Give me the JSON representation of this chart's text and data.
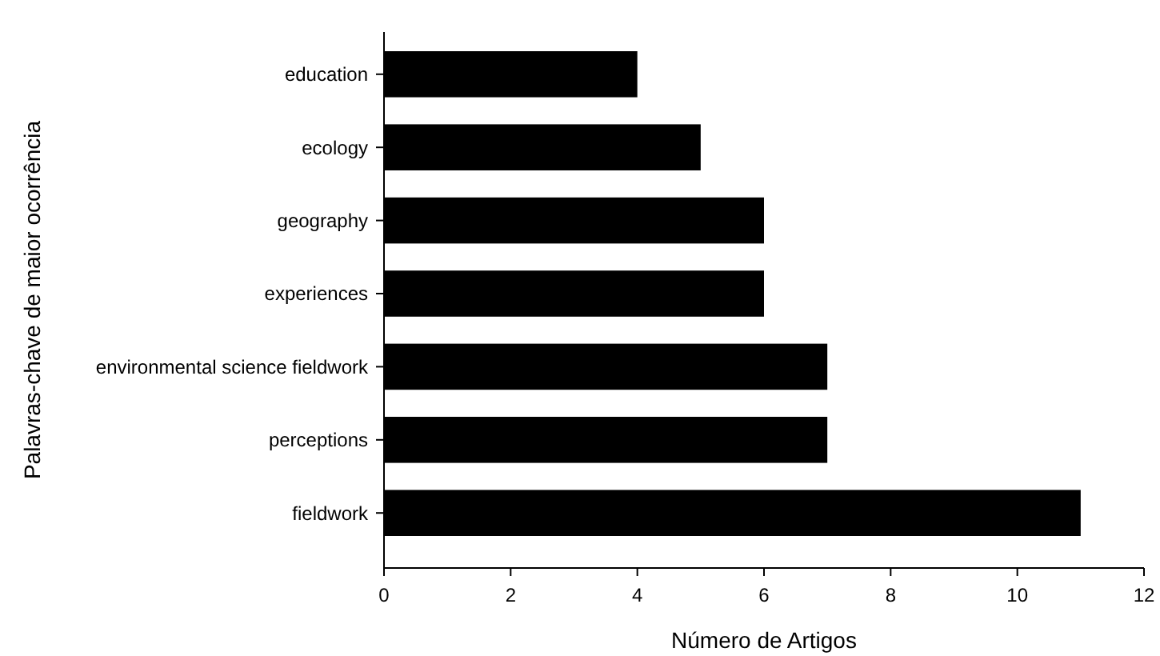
{
  "chart_data": {
    "type": "bar",
    "orientation": "horizontal",
    "xlabel": "Número de Artigos",
    "ylabel": "Palavras-chave de maior ocorrência",
    "categories": [
      "education",
      "ecology",
      "geography",
      "experiences",
      "environmental science fieldwork",
      "perceptions",
      "fieldwork"
    ],
    "values": [
      4,
      5,
      6,
      6,
      7,
      7,
      11
    ],
    "color": "#000000",
    "xlim": [
      0,
      12
    ],
    "xticks": [
      0,
      2,
      4,
      6,
      8,
      10,
      12
    ]
  }
}
